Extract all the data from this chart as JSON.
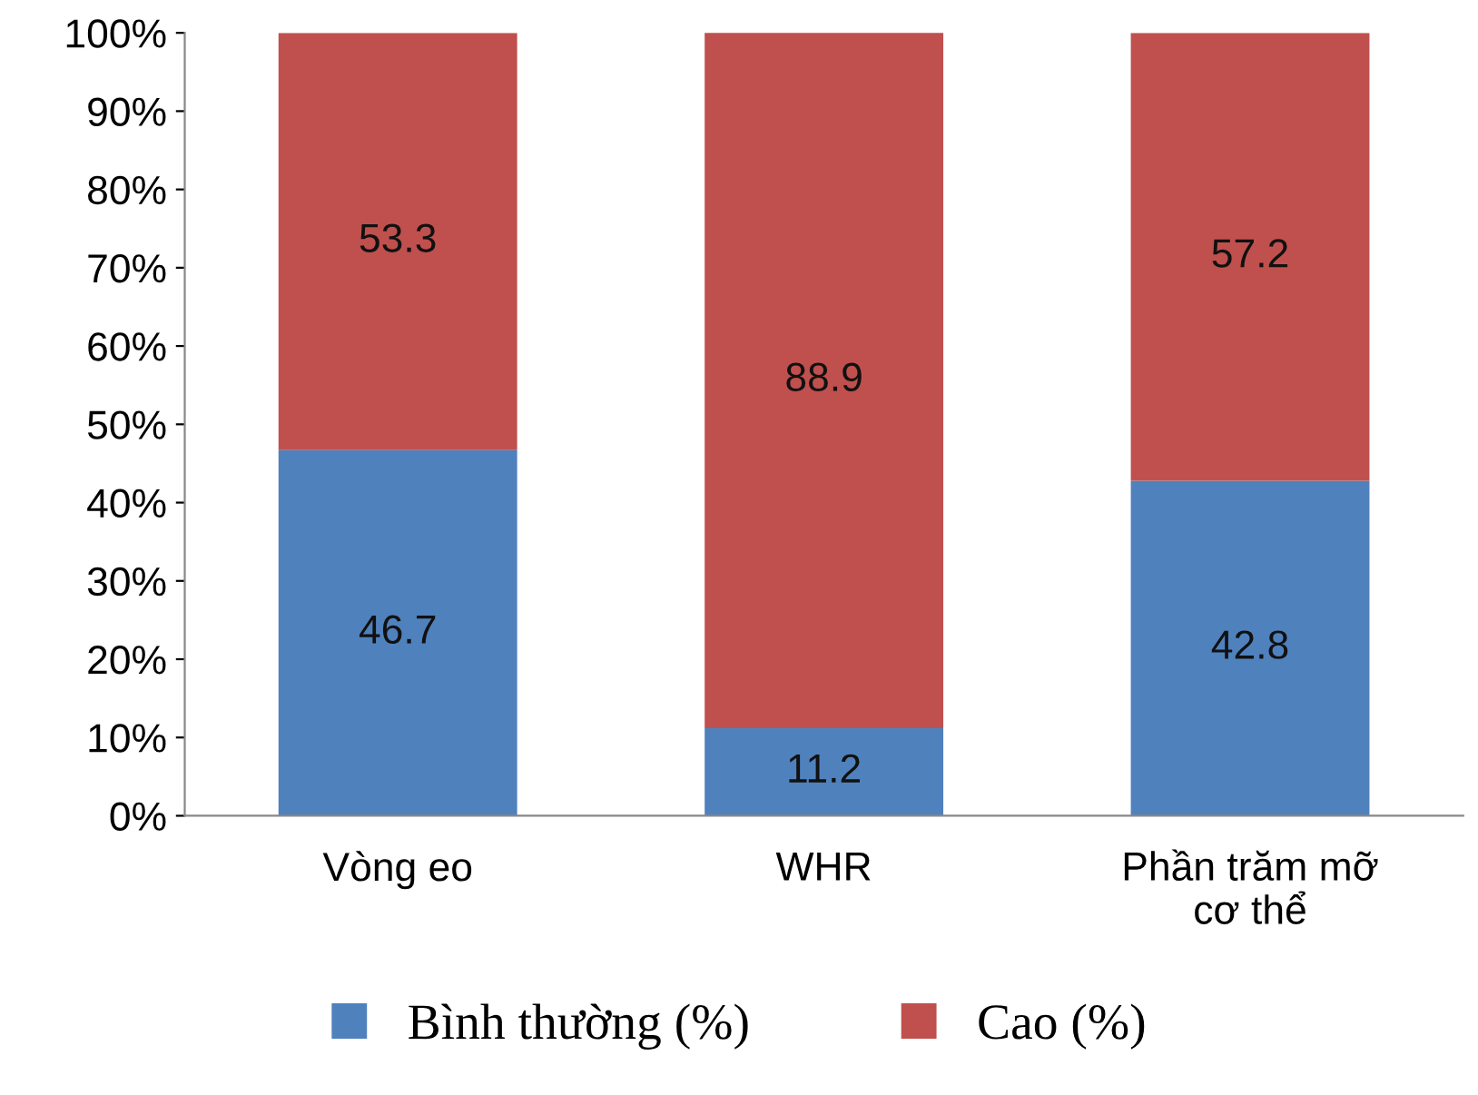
{
  "chart_data": {
    "type": "bar",
    "stacked": true,
    "categories": [
      "Vòng eo",
      "WHR",
      "Phần trăm mỡ\ncơ thể"
    ],
    "series": [
      {
        "name": "Bình thường (%)",
        "color": "#4f81bd",
        "values": [
          46.7,
          11.2,
          42.8
        ]
      },
      {
        "name": "Cao (%)",
        "color": "#c0504d",
        "values": [
          53.3,
          88.9,
          57.2
        ]
      }
    ],
    "ylim": [
      0,
      100
    ],
    "yticks": [
      {
        "value": 0,
        "label": "0%"
      },
      {
        "value": 10,
        "label": "10%"
      },
      {
        "value": 20,
        "label": "20%"
      },
      {
        "value": 30,
        "label": "30%"
      },
      {
        "value": 40,
        "label": "40%"
      },
      {
        "value": 50,
        "label": "50%"
      },
      {
        "value": 60,
        "label": "60%"
      },
      {
        "value": 70,
        "label": "70%"
      },
      {
        "value": 80,
        "label": "80%"
      },
      {
        "value": 90,
        "label": "90%"
      },
      {
        "value": 100,
        "label": "100%"
      }
    ],
    "data_labels": true,
    "grid": false,
    "legend": "bottom"
  }
}
